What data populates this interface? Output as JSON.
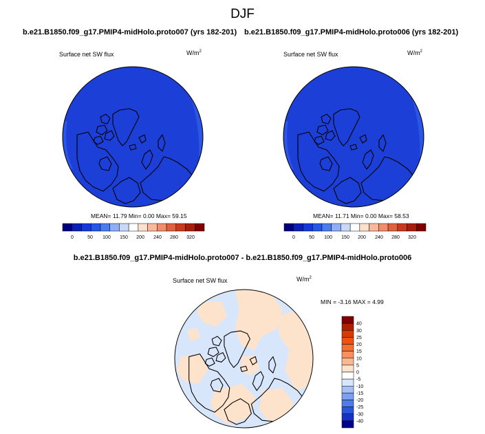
{
  "season": "DJF",
  "panels": [
    {
      "title": "b.e21.B1850.f09_g17.PMIP4-midHolo.proto007 (yrs 182-201)",
      "variable": "Surface net SW flux",
      "units_base": "W/m",
      "units_exp": "2",
      "stats": {
        "mean_label": "MEAN=",
        "mean": "11.79",
        "min_label": "Min=",
        "min": "0.00",
        "max_label": "Max=",
        "max": "59.15"
      }
    },
    {
      "title": "b.e21.B1850.f09_g17.PMIP4-midHolo.proto006 (yrs 182-201)",
      "variable": "Surface net SW flux",
      "units_base": "W/m",
      "units_exp": "2",
      "stats": {
        "mean_label": "MEAN=",
        "mean": "11.71",
        "min_label": "Min=",
        "min": "0.00",
        "max_label": "Max=",
        "max": "58.53"
      }
    }
  ],
  "colorbar_top": {
    "tick_labels": [
      "0",
      "50",
      "100",
      "150",
      "200",
      "240",
      "280",
      "320"
    ],
    "colors": [
      "#00007f",
      "#0a1fb4",
      "#1438dc",
      "#2556ea",
      "#4a7cef",
      "#8eaef5",
      "#c9d8f9",
      "#ffffff",
      "#fde0cc",
      "#f9b89a",
      "#f08e6c",
      "#e0603f",
      "#c8391d",
      "#a81e0c",
      "#800000"
    ]
  },
  "difference": {
    "title": "b.e21.B1850.f09_g17.PMIP4-midHolo.proto007 - b.e21.B1850.f09_g17.PMIP4-midHolo.proto006",
    "variable": "Surface net SW flux",
    "units_base": "W/m",
    "units_exp": "2",
    "stats": {
      "min_label": "MIN =",
      "min": "-3.16",
      "max_label": "MAX =",
      "max": "4.99"
    },
    "colorbar": {
      "tick_labels": [
        "40",
        "30",
        "25",
        "20",
        "15",
        "10",
        "5",
        "0",
        "-5",
        "-10",
        "-15",
        "-20",
        "-25",
        "-30",
        "-40"
      ],
      "colors": [
        "#800000",
        "#b01e00",
        "#d83a00",
        "#f05010",
        "#f57030",
        "#f89060",
        "#fbb890",
        "#fde3cc",
        "#ffffff",
        "#d8e6fb",
        "#a4c0f4",
        "#7aa0ef",
        "#4e7ce8",
        "#2a56dc",
        "#1232c8",
        "#000090"
      ]
    }
  },
  "map_colors": {
    "ocean_field": "#1c3fd8",
    "edge_field": "#2a55e6",
    "diff_positive": "#fde3cc",
    "diff_negative": "#d8e6fb",
    "coast": "#000000"
  }
}
